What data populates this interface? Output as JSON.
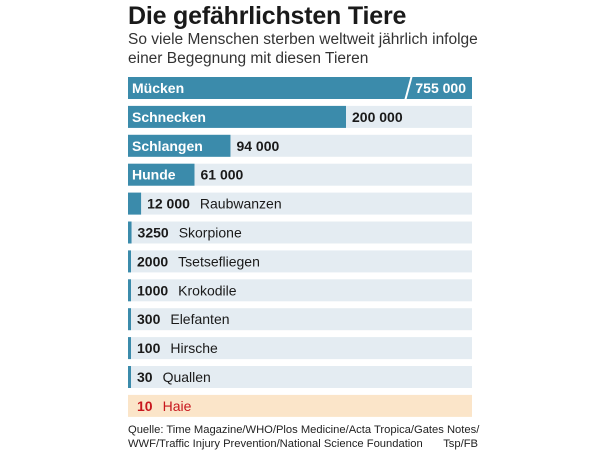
{
  "title": "Die gefährlichsten Tiere",
  "subtitle": "So viele Menschen sterben weltweit jährlich infolge einer Begegnung mit diesen Tieren",
  "chart_data": {
    "type": "bar",
    "orientation": "horizontal",
    "scale_break_on": "Mücken",
    "categories": [
      "Mücken",
      "Schnecken",
      "Schlangen",
      "Hunde",
      "Raubwanzen",
      "Skorpione",
      "Tsetsefliegen",
      "Krokodile",
      "Elefanten",
      "Hirsche",
      "Quallen",
      "Haie"
    ],
    "values": [
      755000,
      200000,
      94000,
      61000,
      12000,
      3250,
      2000,
      1000,
      300,
      100,
      30,
      10
    ],
    "value_labels": [
      "755 000",
      "200 000",
      "94 000",
      "61 000",
      "12 000",
      "3250",
      "2000",
      "1000",
      "300",
      "100",
      "30",
      "10"
    ],
    "highlight": "Haie",
    "colors": {
      "bar": "#3b8bab",
      "track": "#e4ecf2",
      "highlight_track": "#fbe5c9",
      "highlight_text": "#c8161d"
    }
  },
  "source": {
    "line1": "Quelle: Time Magazine/WHO/Plos Medicine/Acta Tropica/Gates Notes/",
    "line2": "WWF/Traffic Injury Prevention/National Science Foundation",
    "credit": "Tsp/FB"
  }
}
